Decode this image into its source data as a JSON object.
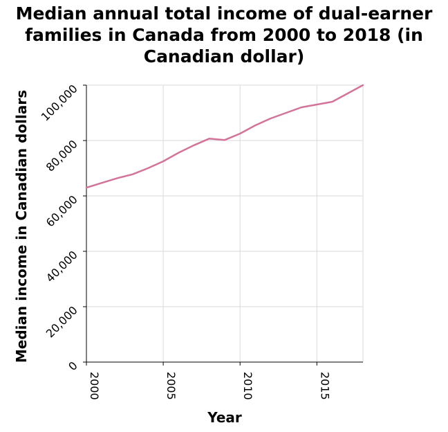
{
  "chart_data": {
    "type": "line",
    "title": "Median annual total income of dual-earner\nfamilies in Canada from 2000 to 2018 (in\nCanadian dollar)",
    "xlabel": "Year",
    "ylabel": "Median income in Canadian dollars",
    "xlim": [
      2000,
      2018
    ],
    "ylim": [
      0,
      100000
    ],
    "x_ticks": [
      2000,
      2005,
      2010,
      2015
    ],
    "x_tick_labels": [
      "2000",
      "2005",
      "2010",
      "2015"
    ],
    "y_ticks": [
      0,
      20000,
      40000,
      60000,
      80000,
      100000
    ],
    "y_tick_labels": [
      "0",
      "20,000",
      "40,000",
      "60,000",
      "80,000",
      "100,000"
    ],
    "grid": true,
    "line_color": "#d4739a",
    "grid_color": "#d9d9d9",
    "series": [
      {
        "x": [
          2000,
          2001,
          2002,
          2003,
          2004,
          2005,
          2006,
          2007,
          2008,
          2009,
          2010,
          2011,
          2012,
          2013,
          2014,
          2015,
          2016,
          2017,
          2018
        ],
        "values": [
          63000,
          64700,
          66400,
          67800,
          70000,
          72500,
          75600,
          78300,
          80700,
          80200,
          82500,
          85500,
          88000,
          90000,
          92000,
          93000,
          94000,
          97000,
          100000
        ]
      }
    ]
  }
}
